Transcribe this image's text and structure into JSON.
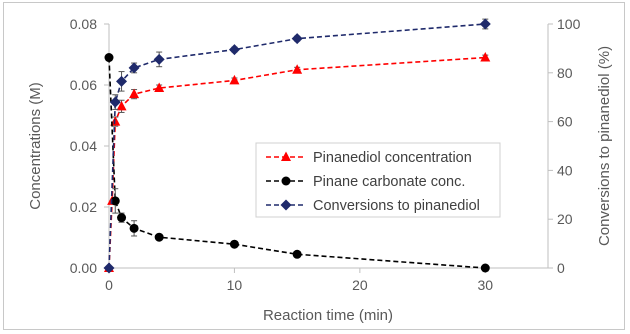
{
  "chart_data": {
    "type": "line",
    "xlabel": "Reaction time (min)",
    "ylabel_left": "Concentrations (M)",
    "ylabel_right": "Conversions to pinanediol (%)",
    "x_ticks": [
      "0",
      "10",
      "20",
      "30"
    ],
    "y_left_ticks": [
      "0.00",
      "0.02",
      "0.04",
      "0.06",
      "0.08"
    ],
    "y_right_ticks": [
      "0",
      "20",
      "40",
      "60",
      "80",
      "100"
    ],
    "xlim": [
      0,
      35
    ],
    "ylim_left": [
      0,
      0.08
    ],
    "ylim_right": [
      0,
      100
    ],
    "grid": false,
    "legend_position": "center-right",
    "series": [
      {
        "name": "Pinanediol concentration",
        "axis": "left",
        "color": "#ff0000",
        "marker": "triangle",
        "line_style": "dashed",
        "x": [
          0,
          0.25,
          0.5,
          1,
          2,
          4,
          10,
          15,
          30
        ],
        "values": [
          0.0,
          0.022,
          0.048,
          0.053,
          0.057,
          0.059,
          0.0615,
          0.065,
          0.069
        ],
        "errors": [
          0,
          0,
          0.0015,
          0.002,
          0.0015,
          0.001,
          0.0008,
          0.0008,
          0.0008
        ]
      },
      {
        "name": "Pinane carbonate conc.",
        "axis": "left",
        "color": "#000000",
        "marker": "circle",
        "line_style": "dashed",
        "x": [
          0,
          0.5,
          1,
          2,
          4,
          10,
          15,
          30
        ],
        "values": [
          0.069,
          0.022,
          0.0165,
          0.013,
          0.0101,
          0.0078,
          0.0045,
          0.0
        ],
        "errors": [
          0,
          0.004,
          0.0015,
          0.0025,
          0.0008,
          0.0008,
          0.0006,
          0.0004
        ]
      },
      {
        "name": "Conversions to pinanediol",
        "axis": "right",
        "color": "#1f2a6b",
        "marker": "diamond",
        "line_style": "dashed",
        "x": [
          0,
          0.5,
          1,
          2,
          4,
          10,
          15,
          30
        ],
        "values": [
          0,
          68,
          76.5,
          82,
          85.5,
          89.5,
          94,
          100
        ],
        "errors": [
          0,
          3,
          4,
          2,
          3,
          1,
          1,
          2
        ]
      }
    ]
  }
}
